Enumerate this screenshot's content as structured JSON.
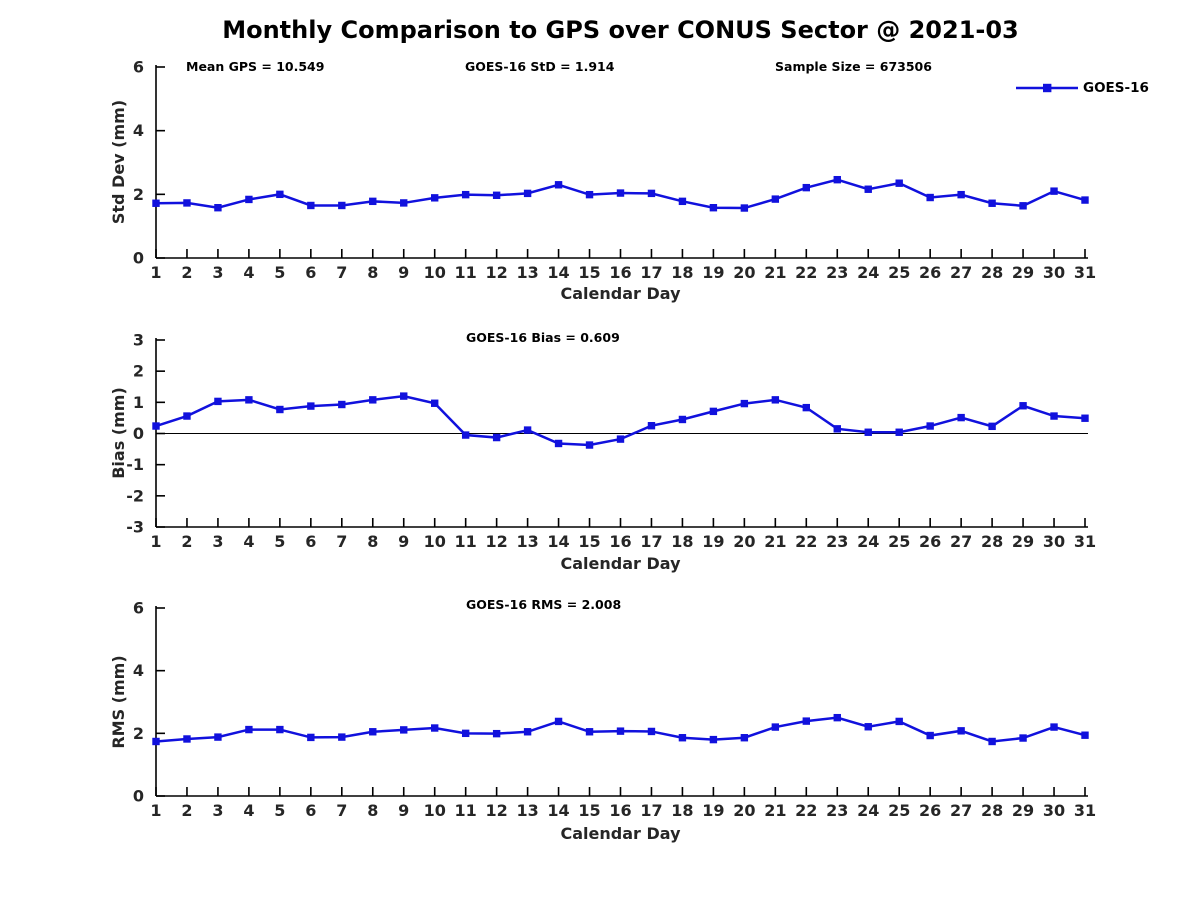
{
  "title": "Monthly Comparison to GPS over CONUS Sector @ 2021-03",
  "legend": {
    "label": "GOES-16",
    "color": "#1111DD",
    "marker": "square"
  },
  "chart_data": [
    {
      "type": "line",
      "ylabel": "Std Dev (mm)",
      "xlabel": "Calendar Day",
      "annotations": [
        "Mean GPS = 10.549",
        "GOES-16 StD = 1.914",
        "Sample Size = 673506"
      ],
      "ylim": [
        0,
        6
      ],
      "yticks": [
        0,
        2,
        4,
        6
      ],
      "categories": [
        1,
        2,
        3,
        4,
        5,
        6,
        7,
        8,
        9,
        10,
        11,
        12,
        13,
        14,
        15,
        16,
        17,
        18,
        19,
        20,
        21,
        22,
        23,
        24,
        25,
        26,
        27,
        28,
        29,
        30,
        31
      ],
      "series": [
        {
          "name": "GOES-16",
          "values": [
            1.72,
            1.73,
            1.58,
            1.84,
            2.0,
            1.65,
            1.65,
            1.78,
            1.73,
            1.89,
            1.99,
            1.97,
            2.03,
            2.3,
            1.99,
            2.04,
            2.03,
            1.78,
            1.58,
            1.57,
            1.85,
            2.21,
            2.46,
            2.16,
            2.35,
            1.9,
            1.99,
            1.72,
            1.64,
            2.1,
            1.82
          ]
        }
      ]
    },
    {
      "type": "line",
      "ylabel": "Bias (mm)",
      "xlabel": "Calendar Day",
      "annotations": [
        "GOES-16 Bias = 0.609"
      ],
      "ylim": [
        -3,
        3
      ],
      "yticks": [
        -3,
        -2,
        -1,
        0,
        1,
        2,
        3
      ],
      "zero_line": true,
      "categories": [
        1,
        2,
        3,
        4,
        5,
        6,
        7,
        8,
        9,
        10,
        11,
        12,
        13,
        14,
        15,
        16,
        17,
        18,
        19,
        20,
        21,
        22,
        23,
        24,
        25,
        26,
        27,
        28,
        29,
        30,
        31
      ],
      "series": [
        {
          "name": "GOES-16",
          "values": [
            0.24,
            0.56,
            1.03,
            1.08,
            0.77,
            0.88,
            0.93,
            1.08,
            1.2,
            0.97,
            -0.05,
            -0.13,
            0.11,
            -0.32,
            -0.37,
            -0.18,
            0.25,
            0.45,
            0.71,
            0.96,
            1.08,
            0.83,
            0.15,
            0.04,
            0.04,
            0.24,
            0.51,
            0.23,
            0.89,
            0.56,
            0.49
          ]
        }
      ]
    },
    {
      "type": "line",
      "ylabel": "RMS (mm)",
      "xlabel": "Calendar Day",
      "annotations": [
        "GOES-16 RMS = 2.008"
      ],
      "ylim": [
        0,
        6
      ],
      "yticks": [
        0,
        2,
        4,
        6
      ],
      "categories": [
        1,
        2,
        3,
        4,
        5,
        6,
        7,
        8,
        9,
        10,
        11,
        12,
        13,
        14,
        15,
        16,
        17,
        18,
        19,
        20,
        21,
        22,
        23,
        24,
        25,
        26,
        27,
        28,
        29,
        30,
        31
      ],
      "series": [
        {
          "name": "GOES-16",
          "values": [
            1.74,
            1.82,
            1.88,
            2.12,
            2.12,
            1.87,
            1.88,
            2.05,
            2.11,
            2.17,
            2.0,
            1.99,
            2.05,
            2.38,
            2.05,
            2.07,
            2.06,
            1.86,
            1.8,
            1.86,
            2.2,
            2.39,
            2.5,
            2.21,
            2.38,
            1.93,
            2.08,
            1.74,
            1.85,
            2.2,
            1.94
          ]
        }
      ]
    }
  ]
}
